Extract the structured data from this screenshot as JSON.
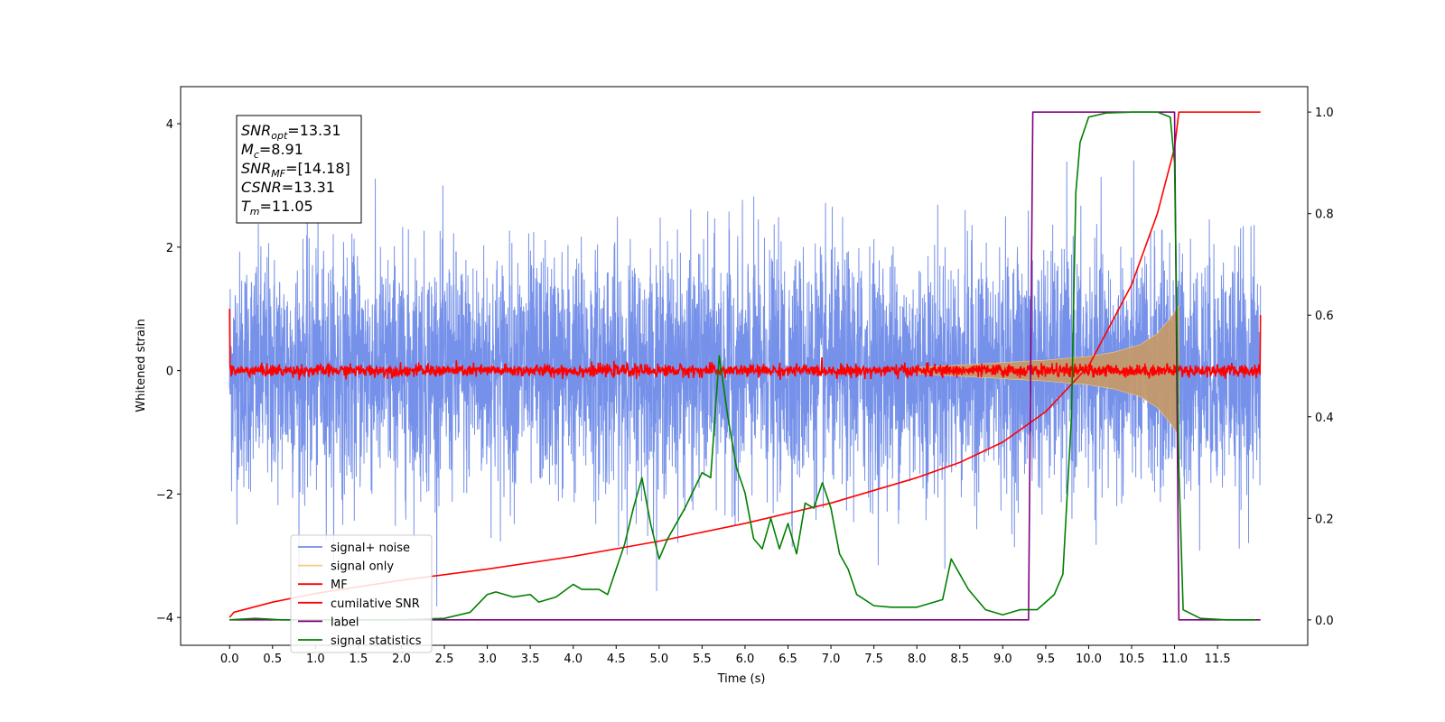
{
  "chart_data": {
    "type": "line",
    "title": "",
    "xlabel": "Time (s)",
    "ylabel": "Whitened strain",
    "xlim": [
      -0.57,
      12.55
    ],
    "ylim_left": [
      -4.45,
      4.6
    ],
    "ylim_right": [
      -0.05,
      1.05
    ],
    "x_ticks": [
      0.0,
      0.5,
      1.0,
      1.5,
      2.0,
      2.5,
      3.0,
      3.5,
      4.0,
      4.5,
      5.0,
      5.5,
      6.0,
      6.5,
      7.0,
      7.5,
      8.0,
      8.5,
      9.0,
      9.5,
      10.0,
      10.5,
      11.0,
      11.5
    ],
    "x_tick_labels": [
      "0.0",
      "0.5",
      "1.0",
      "1.5",
      "2.0",
      "2.5",
      "3.0",
      "3.5",
      "4.0",
      "4.5",
      "5.0",
      "5.5",
      "6.0",
      "6.5",
      "7.0",
      "7.5",
      "8.0",
      "8.5",
      "9.0",
      "9.5",
      "10.0",
      "10.5",
      "11.0",
      "11.5"
    ],
    "y_left_ticks": [
      -4,
      -2,
      0,
      2,
      4
    ],
    "y_left_tick_labels": [
      "−4",
      "−2",
      "0",
      "2",
      "4"
    ],
    "y_right_ticks": [
      0.0,
      0.2,
      0.4,
      0.6,
      0.8,
      1.0
    ],
    "y_right_tick_labels": [
      "0.0",
      "0.2",
      "0.4",
      "0.6",
      "0.8",
      "1.0"
    ],
    "grid": false,
    "legend_position": "lower-left",
    "series": [
      {
        "name": "signal+ noise",
        "axis": "left",
        "color": "#6f8be8",
        "style": "noise",
        "x_range": [
          0.0,
          12.0
        ],
        "amplitude_sd": 0.95,
        "envelope_peak": [
          -3.9,
          4.1
        ]
      },
      {
        "name": "signal only",
        "axis": "left",
        "color": "#f5cc80",
        "style": "chirp",
        "envelope_x": [
          8.0,
          8.5,
          9.0,
          9.5,
          10.0,
          10.3,
          10.6,
          10.8,
          10.95,
          11.05
        ],
        "envelope_amp": [
          0.05,
          0.09,
          0.13,
          0.17,
          0.23,
          0.3,
          0.42,
          0.6,
          0.85,
          1.05
        ]
      },
      {
        "name": "MF",
        "axis": "left",
        "color": "#ff0000",
        "style": "noise",
        "x_range": [
          0.0,
          12.0
        ],
        "amplitude_sd": 0.05,
        "start_value": 1.0,
        "end_value": 0.9
      },
      {
        "name": "cumilative SNR",
        "axis": "right",
        "color": "#ff0000",
        "style": "line",
        "x": [
          0.0,
          0.05,
          0.5,
          1.0,
          2.0,
          3.0,
          4.0,
          5.0,
          6.0,
          7.0,
          8.0,
          8.5,
          9.0,
          9.5,
          10.0,
          10.5,
          10.8,
          11.0,
          11.05,
          12.0
        ],
        "y": [
          0.005,
          0.015,
          0.035,
          0.052,
          0.078,
          0.1,
          0.125,
          0.155,
          0.19,
          0.23,
          0.28,
          0.31,
          0.35,
          0.41,
          0.5,
          0.66,
          0.8,
          0.93,
          1.0,
          1.0
        ]
      },
      {
        "name": "label",
        "axis": "right",
        "color": "#800080",
        "style": "step",
        "x": [
          0.0,
          9.3,
          9.35,
          11.0,
          11.05,
          12.0
        ],
        "y": [
          0.0,
          0.0,
          1.0,
          1.0,
          0.0,
          0.0
        ]
      },
      {
        "name": "signal statistics",
        "axis": "right",
        "color": "#008000",
        "style": "line",
        "x": [
          0.0,
          0.3,
          0.6,
          1.0,
          1.5,
          2.0,
          2.5,
          2.8,
          3.0,
          3.1,
          3.3,
          3.5,
          3.6,
          3.8,
          4.0,
          4.1,
          4.3,
          4.4,
          4.5,
          4.6,
          4.7,
          4.8,
          4.9,
          5.0,
          5.1,
          5.3,
          5.5,
          5.6,
          5.65,
          5.7,
          5.8,
          5.9,
          6.0,
          6.1,
          6.2,
          6.3,
          6.4,
          6.5,
          6.6,
          6.7,
          6.8,
          6.9,
          7.0,
          7.1,
          7.2,
          7.3,
          7.5,
          7.7,
          8.0,
          8.3,
          8.4,
          8.6,
          8.8,
          9.0,
          9.2,
          9.4,
          9.6,
          9.7,
          9.8,
          9.85,
          9.9,
          10.0,
          10.2,
          10.5,
          10.8,
          10.95,
          11.0,
          11.05,
          11.1,
          11.3,
          11.6,
          11.95
        ],
        "y": [
          0.0,
          0.003,
          0.0,
          0.0,
          0.0,
          0.0,
          0.003,
          0.015,
          0.05,
          0.055,
          0.045,
          0.05,
          0.035,
          0.045,
          0.07,
          0.06,
          0.06,
          0.05,
          0.1,
          0.15,
          0.22,
          0.28,
          0.19,
          0.12,
          0.16,
          0.22,
          0.29,
          0.28,
          0.4,
          0.52,
          0.4,
          0.3,
          0.25,
          0.16,
          0.14,
          0.2,
          0.14,
          0.19,
          0.13,
          0.23,
          0.22,
          0.27,
          0.22,
          0.13,
          0.1,
          0.05,
          0.028,
          0.025,
          0.025,
          0.04,
          0.12,
          0.06,
          0.02,
          0.01,
          0.02,
          0.02,
          0.05,
          0.09,
          0.4,
          0.84,
          0.94,
          0.99,
          0.998,
          1.0,
          1.0,
          0.99,
          0.9,
          0.3,
          0.02,
          0.003,
          0.0,
          0.0
        ]
      }
    ],
    "annotation": {
      "lines": [
        {
          "label": "SNR",
          "sub": "opt",
          "value": "=13.31"
        },
        {
          "label": "M",
          "sub": "c",
          "value": "=8.91"
        },
        {
          "label": "SNR",
          "sub": "MF",
          "value": "=[14.18]"
        },
        {
          "label": "CSNR",
          "sub": "",
          "value": "=13.31"
        },
        {
          "label": "T",
          "sub": "m",
          "value": "=11.05"
        }
      ]
    }
  }
}
